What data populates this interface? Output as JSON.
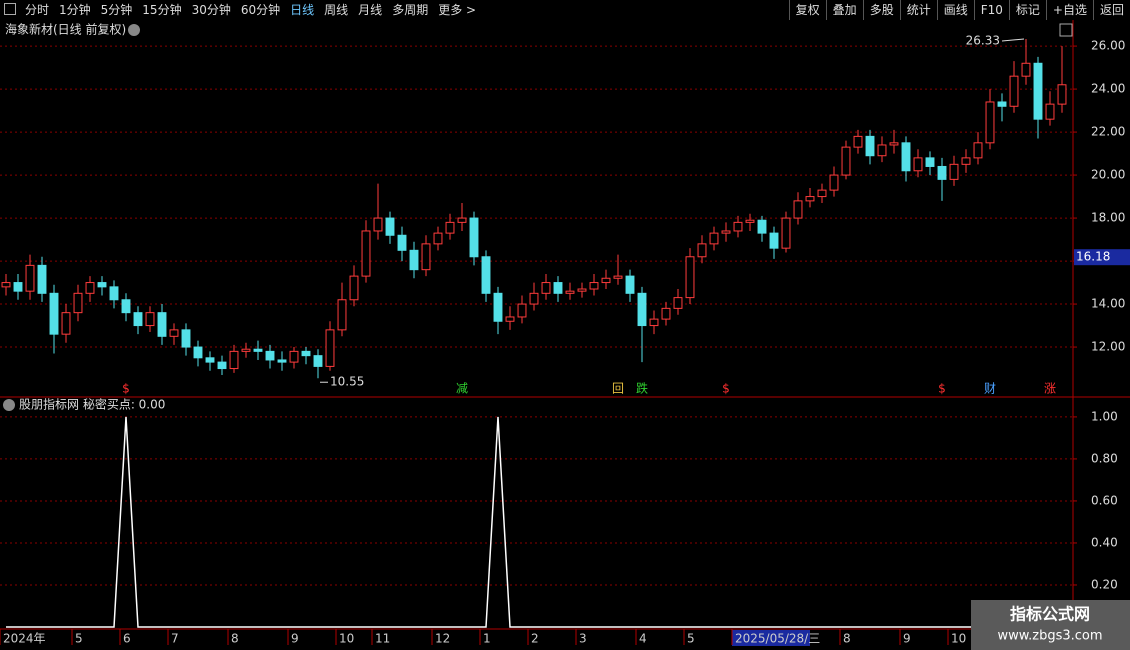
{
  "toolbar": {
    "left": [
      "分时",
      "1分钟",
      "5分钟",
      "15分钟",
      "30分钟",
      "60分钟",
      "日线",
      "周线",
      "月线",
      "多周期",
      "更多 >"
    ],
    "active": "日线",
    "right": [
      "复权",
      "叠加",
      "多股",
      "统计",
      "画线",
      "F10",
      "标记",
      "+自选",
      "返回"
    ]
  },
  "chart_data": [
    {
      "type": "candlestick",
      "title": "海象新材(日线 前复权)",
      "categories": [
        "2024年",
        null,
        null,
        null,
        null,
        null,
        "5",
        null,
        null,
        null,
        "6",
        null,
        null,
        null,
        "7",
        null,
        null,
        null,
        null,
        "8",
        null,
        null,
        null,
        null,
        "9",
        null,
        null,
        null,
        "10",
        null,
        null,
        "11",
        null,
        null,
        null,
        null,
        "12",
        null,
        null,
        null,
        "1",
        null,
        null,
        null,
        "2",
        null,
        null,
        null,
        "3",
        null,
        null,
        null,
        null,
        "4",
        null,
        null,
        null,
        "5",
        null,
        null,
        null,
        "2025/05/28/三",
        null,
        null,
        null,
        null,
        null,
        null,
        null,
        null,
        "8",
        null,
        null,
        null,
        null,
        "9",
        null,
        null,
        null,
        "10",
        null,
        null,
        null,
        null,
        null,
        null,
        null,
        null,
        null
      ],
      "highlight_category": "2025/05/28/三",
      "opens": [
        14.8,
        15.0,
        14.6,
        15.8,
        14.5,
        12.6,
        13.6,
        14.5,
        15.0,
        14.8,
        14.2,
        13.6,
        13.0,
        13.6,
        12.5,
        12.8,
        12.0,
        11.5,
        11.3,
        11.0,
        11.8,
        11.9,
        11.8,
        11.4,
        11.3,
        11.8,
        11.6,
        11.1,
        12.8,
        14.2,
        15.3,
        17.4,
        18.0,
        17.2,
        16.5,
        15.6,
        16.8,
        17.3,
        17.8,
        18.0,
        16.2,
        14.5,
        13.2,
        13.4,
        14.0,
        14.5,
        15.0,
        14.5,
        14.6,
        14.7,
        15.0,
        15.2,
        15.3,
        14.5,
        13.0,
        13.3,
        13.8,
        14.3,
        16.2,
        16.8,
        17.3,
        17.4,
        17.8,
        17.9,
        17.3,
        16.6,
        18.0,
        18.8,
        19.0,
        19.3,
        20.0,
        21.3,
        21.8,
        20.9,
        21.4,
        21.5,
        20.2,
        20.8,
        20.4,
        19.8,
        20.5,
        20.8,
        21.5,
        23.4,
        23.2,
        24.6,
        25.2,
        22.6,
        23.3
      ],
      "highs": [
        15.4,
        15.4,
        16.3,
        16.2,
        14.9,
        14.0,
        14.9,
        15.3,
        15.3,
        15.1,
        14.5,
        13.9,
        13.9,
        14.0,
        13.1,
        13.1,
        12.3,
        11.8,
        11.6,
        12.1,
        12.2,
        12.3,
        12.1,
        11.8,
        12.0,
        12.0,
        11.9,
        13.2,
        15.0,
        15.8,
        17.9,
        19.6,
        18.3,
        17.6,
        16.9,
        17.2,
        17.6,
        18.2,
        18.7,
        18.3,
        16.5,
        14.8,
        13.9,
        14.4,
        15.0,
        15.4,
        15.3,
        15.0,
        15.0,
        15.4,
        15.6,
        16.3,
        15.6,
        14.8,
        13.7,
        14.1,
        14.7,
        16.6,
        17.2,
        17.6,
        17.8,
        18.1,
        18.2,
        18.1,
        17.6,
        18.3,
        19.2,
        19.4,
        19.6,
        20.4,
        21.6,
        22.1,
        22.1,
        21.8,
        22.1,
        21.8,
        21.2,
        21.1,
        20.8,
        20.9,
        21.2,
        22.0,
        24.0,
        23.8,
        25.3,
        26.33,
        25.5,
        23.9,
        26.0
      ],
      "lows": [
        14.4,
        14.2,
        14.2,
        14.1,
        11.7,
        12.2,
        13.2,
        14.1,
        14.4,
        13.8,
        13.2,
        12.6,
        12.7,
        12.1,
        12.1,
        11.6,
        11.1,
        10.9,
        10.7,
        10.8,
        11.5,
        11.4,
        11.0,
        10.9,
        11.0,
        11.2,
        10.55,
        10.9,
        12.5,
        13.9,
        15.0,
        17.0,
        16.8,
        16.0,
        15.2,
        15.3,
        16.5,
        17.0,
        17.4,
        15.8,
        14.1,
        12.6,
        12.8,
        13.1,
        13.7,
        14.2,
        14.1,
        14.2,
        14.3,
        14.4,
        14.7,
        14.9,
        14.1,
        11.3,
        12.6,
        13.0,
        13.5,
        14.0,
        15.9,
        16.5,
        16.9,
        17.1,
        17.4,
        16.9,
        16.1,
        16.4,
        17.7,
        18.5,
        18.7,
        19.0,
        19.8,
        21.0,
        20.5,
        20.6,
        21.0,
        19.7,
        19.9,
        20.0,
        18.8,
        19.5,
        20.1,
        20.5,
        21.2,
        22.5,
        22.9,
        24.2,
        21.7,
        22.3,
        22.9
      ],
      "closes": [
        15.0,
        14.6,
        15.8,
        14.5,
        12.6,
        13.6,
        14.5,
        15.0,
        14.8,
        14.2,
        13.6,
        13.0,
        13.6,
        12.5,
        12.8,
        12.0,
        11.5,
        11.3,
        11.0,
        11.8,
        11.9,
        11.8,
        11.4,
        11.3,
        11.8,
        11.6,
        11.1,
        12.8,
        14.2,
        15.3,
        17.4,
        18.0,
        17.2,
        16.5,
        15.6,
        16.8,
        17.3,
        17.8,
        18.0,
        16.2,
        14.5,
        13.2,
        13.4,
        14.0,
        14.5,
        15.0,
        14.5,
        14.6,
        14.7,
        15.0,
        15.2,
        15.3,
        14.5,
        13.0,
        13.3,
        13.8,
        14.3,
        16.2,
        16.8,
        17.3,
        17.4,
        17.8,
        17.9,
        17.3,
        16.6,
        18.0,
        18.8,
        19.0,
        19.3,
        20.0,
        21.3,
        21.8,
        20.9,
        21.4,
        21.5,
        20.2,
        20.8,
        20.4,
        19.8,
        20.5,
        20.8,
        21.5,
        23.4,
        23.2,
        24.6,
        25.2,
        22.6,
        23.3,
        24.2
      ],
      "signals": [
        null,
        null,
        null,
        null,
        null,
        null,
        null,
        null,
        null,
        null,
        {
          "text": "$",
          "color": "#ff3030"
        },
        null,
        null,
        null,
        null,
        null,
        null,
        null,
        null,
        null,
        null,
        null,
        null,
        null,
        null,
        null,
        null,
        null,
        null,
        null,
        null,
        null,
        null,
        null,
        null,
        null,
        null,
        null,
        {
          "text": "减",
          "color": "#30d030"
        },
        null,
        null,
        null,
        null,
        null,
        null,
        null,
        null,
        null,
        null,
        null,
        null,
        {
          "text": "回",
          "color": "#e8c040"
        },
        null,
        {
          "text": "跌",
          "color": "#30d030"
        },
        null,
        null,
        null,
        null,
        null,
        null,
        {
          "text": "$",
          "color": "#ff3030"
        },
        null,
        null,
        null,
        null,
        null,
        null,
        null,
        null,
        null,
        null,
        null,
        null,
        null,
        null,
        null,
        null,
        null,
        {
          "text": "$",
          "color": "#ff3030"
        },
        null,
        null,
        null,
        {
          "text": "财",
          "color": "#4aa0ff"
        },
        null,
        null,
        null,
        null,
        {
          "text": "涨",
          "color": "#ff3030"
        },
        null
      ],
      "up_color": "#ff3c3c",
      "down_color": "#54e0e8",
      "ylim": [
        9.77,
        27.12
      ],
      "yticks": [
        {
          "value": 12,
          "label": "12.00"
        },
        {
          "value": 14,
          "label": "14.00"
        },
        {
          "value": 16,
          "label": "16.00"
        },
        {
          "value": 18,
          "label": "18.00"
        },
        {
          "value": 20,
          "label": "20.00"
        },
        {
          "value": 22,
          "label": "22.00"
        },
        {
          "value": 24,
          "label": "24.00"
        },
        {
          "value": 26,
          "label": "26.00"
        }
      ],
      "cursor_price": 16.18,
      "grid": true
    },
    {
      "type": "line",
      "title": "股朋指标网 秘密买点: 0.00",
      "color": "#ffffff",
      "values": [
        0,
        0,
        0,
        0,
        0,
        0,
        0,
        0,
        0,
        0,
        1,
        0,
        0,
        0,
        0,
        0,
        0,
        0,
        0,
        0,
        0,
        0,
        0,
        0,
        0,
        0,
        0,
        0,
        0,
        0,
        0,
        0,
        0,
        0,
        0,
        0,
        0,
        0,
        0,
        0,
        0,
        1,
        0,
        0,
        0,
        0,
        0,
        0,
        0,
        0,
        0,
        0,
        0,
        0,
        0,
        0,
        0,
        0,
        0,
        0,
        0,
        0,
        0,
        0,
        0,
        0,
        0,
        0,
        0,
        0,
        0,
        0,
        0,
        0,
        0,
        0,
        0,
        0,
        0,
        0,
        0,
        0,
        0,
        0,
        0,
        0,
        0,
        0,
        0
      ],
      "ylim": [
        0,
        1.09
      ],
      "yticks": [
        {
          "value": 0.2,
          "label": "0.20"
        },
        {
          "value": 0.4,
          "label": "0.40"
        },
        {
          "value": 0.6,
          "label": "0.60"
        },
        {
          "value": 0.8,
          "label": "0.80"
        },
        {
          "value": 1,
          "label": "1.00"
        }
      ],
      "grid": true
    }
  ],
  "watermark": {
    "title": "指标公式网",
    "url": "www.zbgs3.com"
  }
}
